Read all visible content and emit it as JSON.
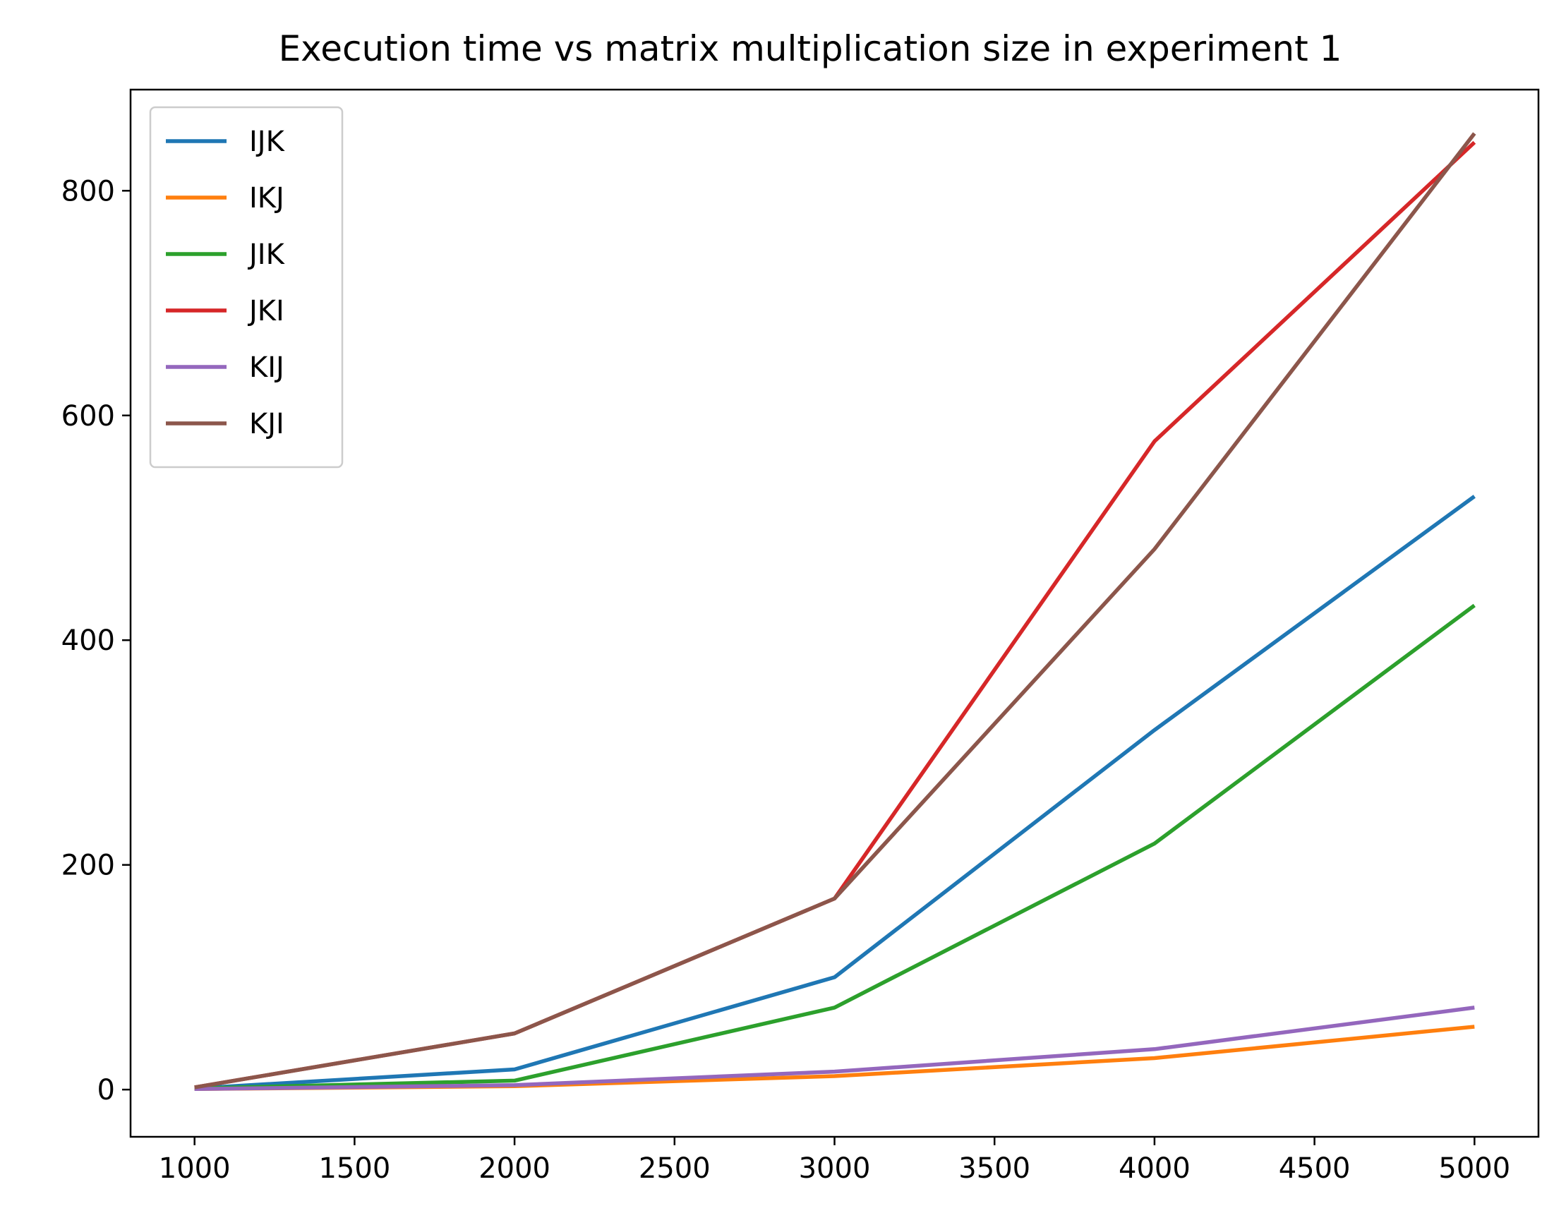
{
  "chart_data": {
    "type": "line",
    "title": "Execution time vs matrix multiplication size in experiment 1",
    "xlabel": "",
    "ylabel": "",
    "x": [
      1000,
      2000,
      3000,
      4000,
      5000
    ],
    "xlim": [
      800,
      5200
    ],
    "ylim": [
      -42,
      890
    ],
    "x_ticks": [
      1000,
      1500,
      2000,
      2500,
      3000,
      3500,
      4000,
      4500,
      5000
    ],
    "y_ticks": [
      0,
      200,
      400,
      600,
      800
    ],
    "grid": false,
    "legend_position": "top-left",
    "series": [
      {
        "name": "IJK",
        "color": "#1f77b4",
        "values": [
          1,
          18,
          100,
          320,
          528
        ]
      },
      {
        "name": "IKJ",
        "color": "#ff7f0e",
        "values": [
          0.5,
          3,
          12,
          28,
          56
        ]
      },
      {
        "name": "JIK",
        "color": "#2ca02c",
        "values": [
          1,
          8,
          73,
          219,
          431
        ]
      },
      {
        "name": "JKI",
        "color": "#d62728",
        "values": [
          2,
          50,
          170,
          577,
          843
        ]
      },
      {
        "name": "KIJ",
        "color": "#9467bd",
        "values": [
          0.5,
          4,
          16,
          36,
          73
        ]
      },
      {
        "name": "KJI",
        "color": "#8c564b",
        "values": [
          2,
          50,
          170,
          481,
          851
        ]
      }
    ]
  }
}
